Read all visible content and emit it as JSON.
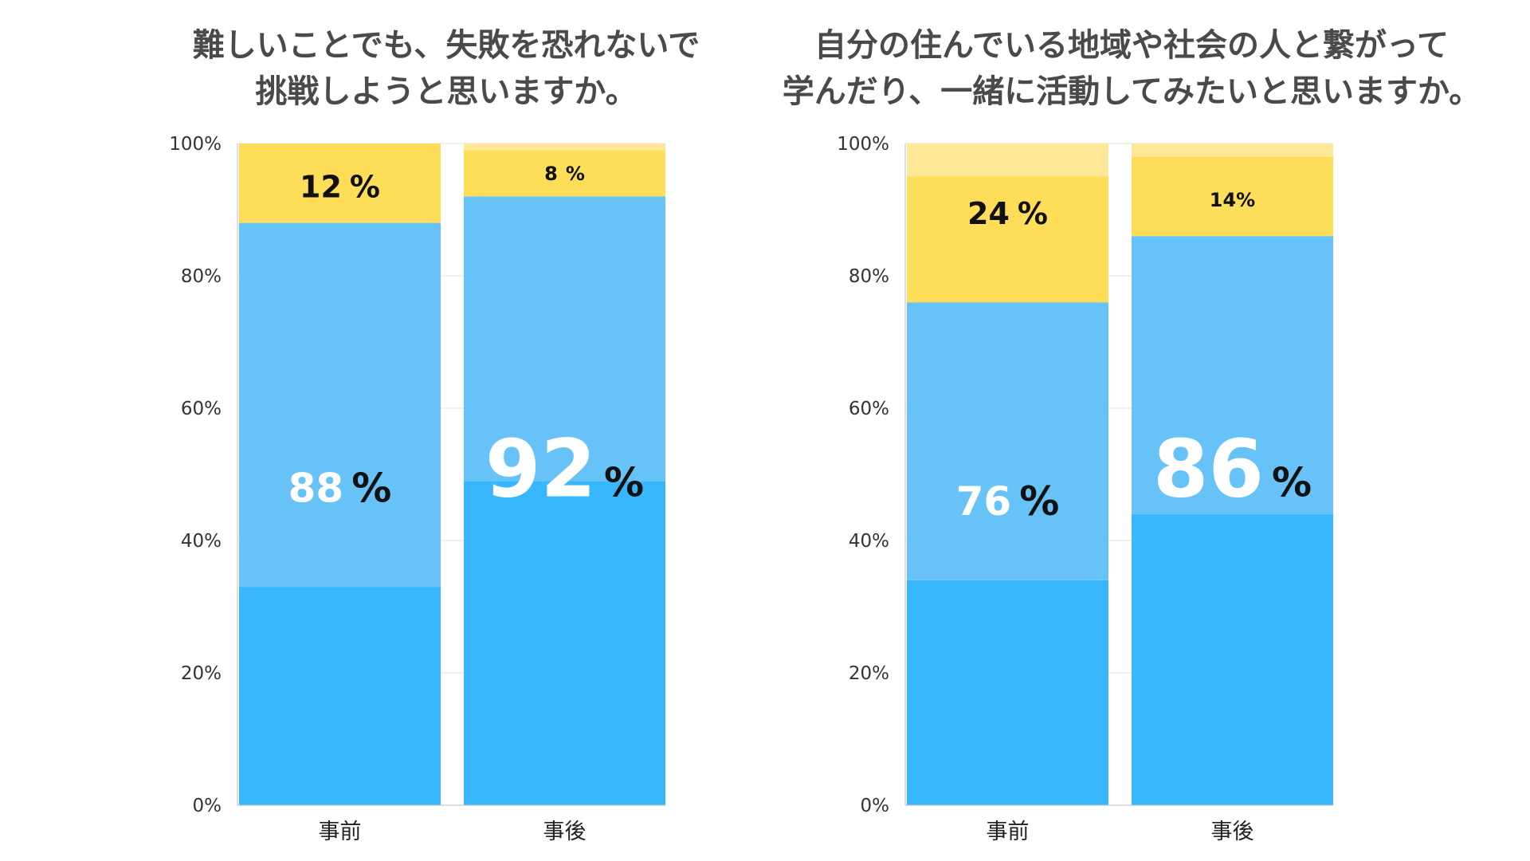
{
  "chart_data": [
    {
      "type": "bar",
      "stacked": true,
      "title": "難しいことでも、失敗を恐れないで\n挑戦しようと思いますか。",
      "categories": [
        "事前",
        "事後"
      ],
      "ylim": [
        0,
        100
      ],
      "yticks": [
        "0%",
        "20%",
        "40%",
        "60%",
        "80%",
        "100%"
      ],
      "series": [
        {
          "values": [
            33,
            49
          ],
          "color": "#38b6fe"
        },
        {
          "values": [
            55,
            43
          ],
          "color": "#66c2f7"
        },
        {
          "values": [
            12,
            7
          ],
          "color": "#fedd59"
        },
        {
          "values": [
            0,
            1
          ],
          "color": "#fee898"
        }
      ],
      "labels": [
        {
          "category": 0,
          "at": 48,
          "number": "88",
          "unit": "%",
          "number_color": "#ffffff",
          "unit_color": "#111111",
          "size": "medium"
        },
        {
          "category": 0,
          "at": 93.5,
          "number": "12",
          "unit": "%",
          "number_color": "#111111",
          "unit_color": "#111111",
          "size": "small"
        },
        {
          "category": 1,
          "at": 51,
          "number": "92",
          "unit": "%",
          "number_color": "#ffffff",
          "unit_color": "#111111",
          "size": "large"
        },
        {
          "category": 1,
          "at": 95.5,
          "number": "8",
          "unit": "%",
          "number_color": "#111111",
          "unit_color": "#111111",
          "size": "tiny"
        }
      ]
    },
    {
      "type": "bar",
      "stacked": true,
      "title": "自分の住んでいる地域や社会の人と繋がって\n学んだり、一緒に活動してみたいと思いますか。",
      "categories": [
        "事前",
        "事後"
      ],
      "ylim": [
        0,
        100
      ],
      "yticks": [
        "0%",
        "20%",
        "40%",
        "60%",
        "80%",
        "100%"
      ],
      "series": [
        {
          "values": [
            34,
            44
          ],
          "color": "#38b6fe"
        },
        {
          "values": [
            42,
            42
          ],
          "color": "#66c2f7"
        },
        {
          "values": [
            19,
            12
          ],
          "color": "#fedd59"
        },
        {
          "values": [
            5,
            2
          ],
          "color": "#fee898"
        }
      ],
      "labels": [
        {
          "category": 0,
          "at": 46,
          "number": "76",
          "unit": "%",
          "number_color": "#ffffff",
          "unit_color": "#111111",
          "size": "medium"
        },
        {
          "category": 0,
          "at": 89.5,
          "number": "24",
          "unit": "%",
          "number_color": "#111111",
          "unit_color": "#111111",
          "size": "small"
        },
        {
          "category": 1,
          "at": 51,
          "number": "86",
          "unit": "%",
          "number_color": "#ffffff",
          "unit_color": "#111111",
          "size": "large"
        },
        {
          "category": 1,
          "at": 91.5,
          "number": "14%",
          "unit": "",
          "number_color": "#111111",
          "unit_color": "#111111",
          "size": "tiny"
        }
      ]
    }
  ]
}
